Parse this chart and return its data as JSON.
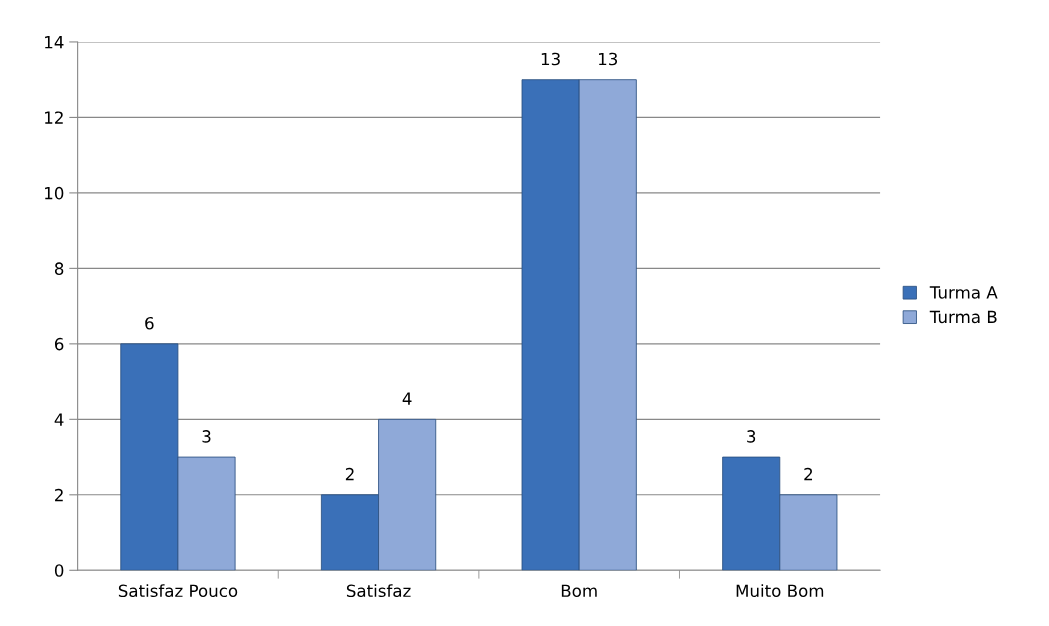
{
  "chart_data": {
    "type": "bar",
    "categories": [
      "Satisfaz Pouco",
      "Satisfaz",
      "Bom",
      "Muito Bom"
    ],
    "series": [
      {
        "name": "Turma A",
        "color": "#3a70b8",
        "values": [
          6,
          2,
          13,
          3
        ]
      },
      {
        "name": "Turma B",
        "color": "#8fa9d8",
        "values": [
          3,
          4,
          13,
          2
        ]
      }
    ],
    "ylim": [
      0,
      14
    ],
    "yticks": [
      0,
      2,
      4,
      6,
      8,
      10,
      12,
      14
    ],
    "grid": "y",
    "legend": "right",
    "data_labels": true
  }
}
